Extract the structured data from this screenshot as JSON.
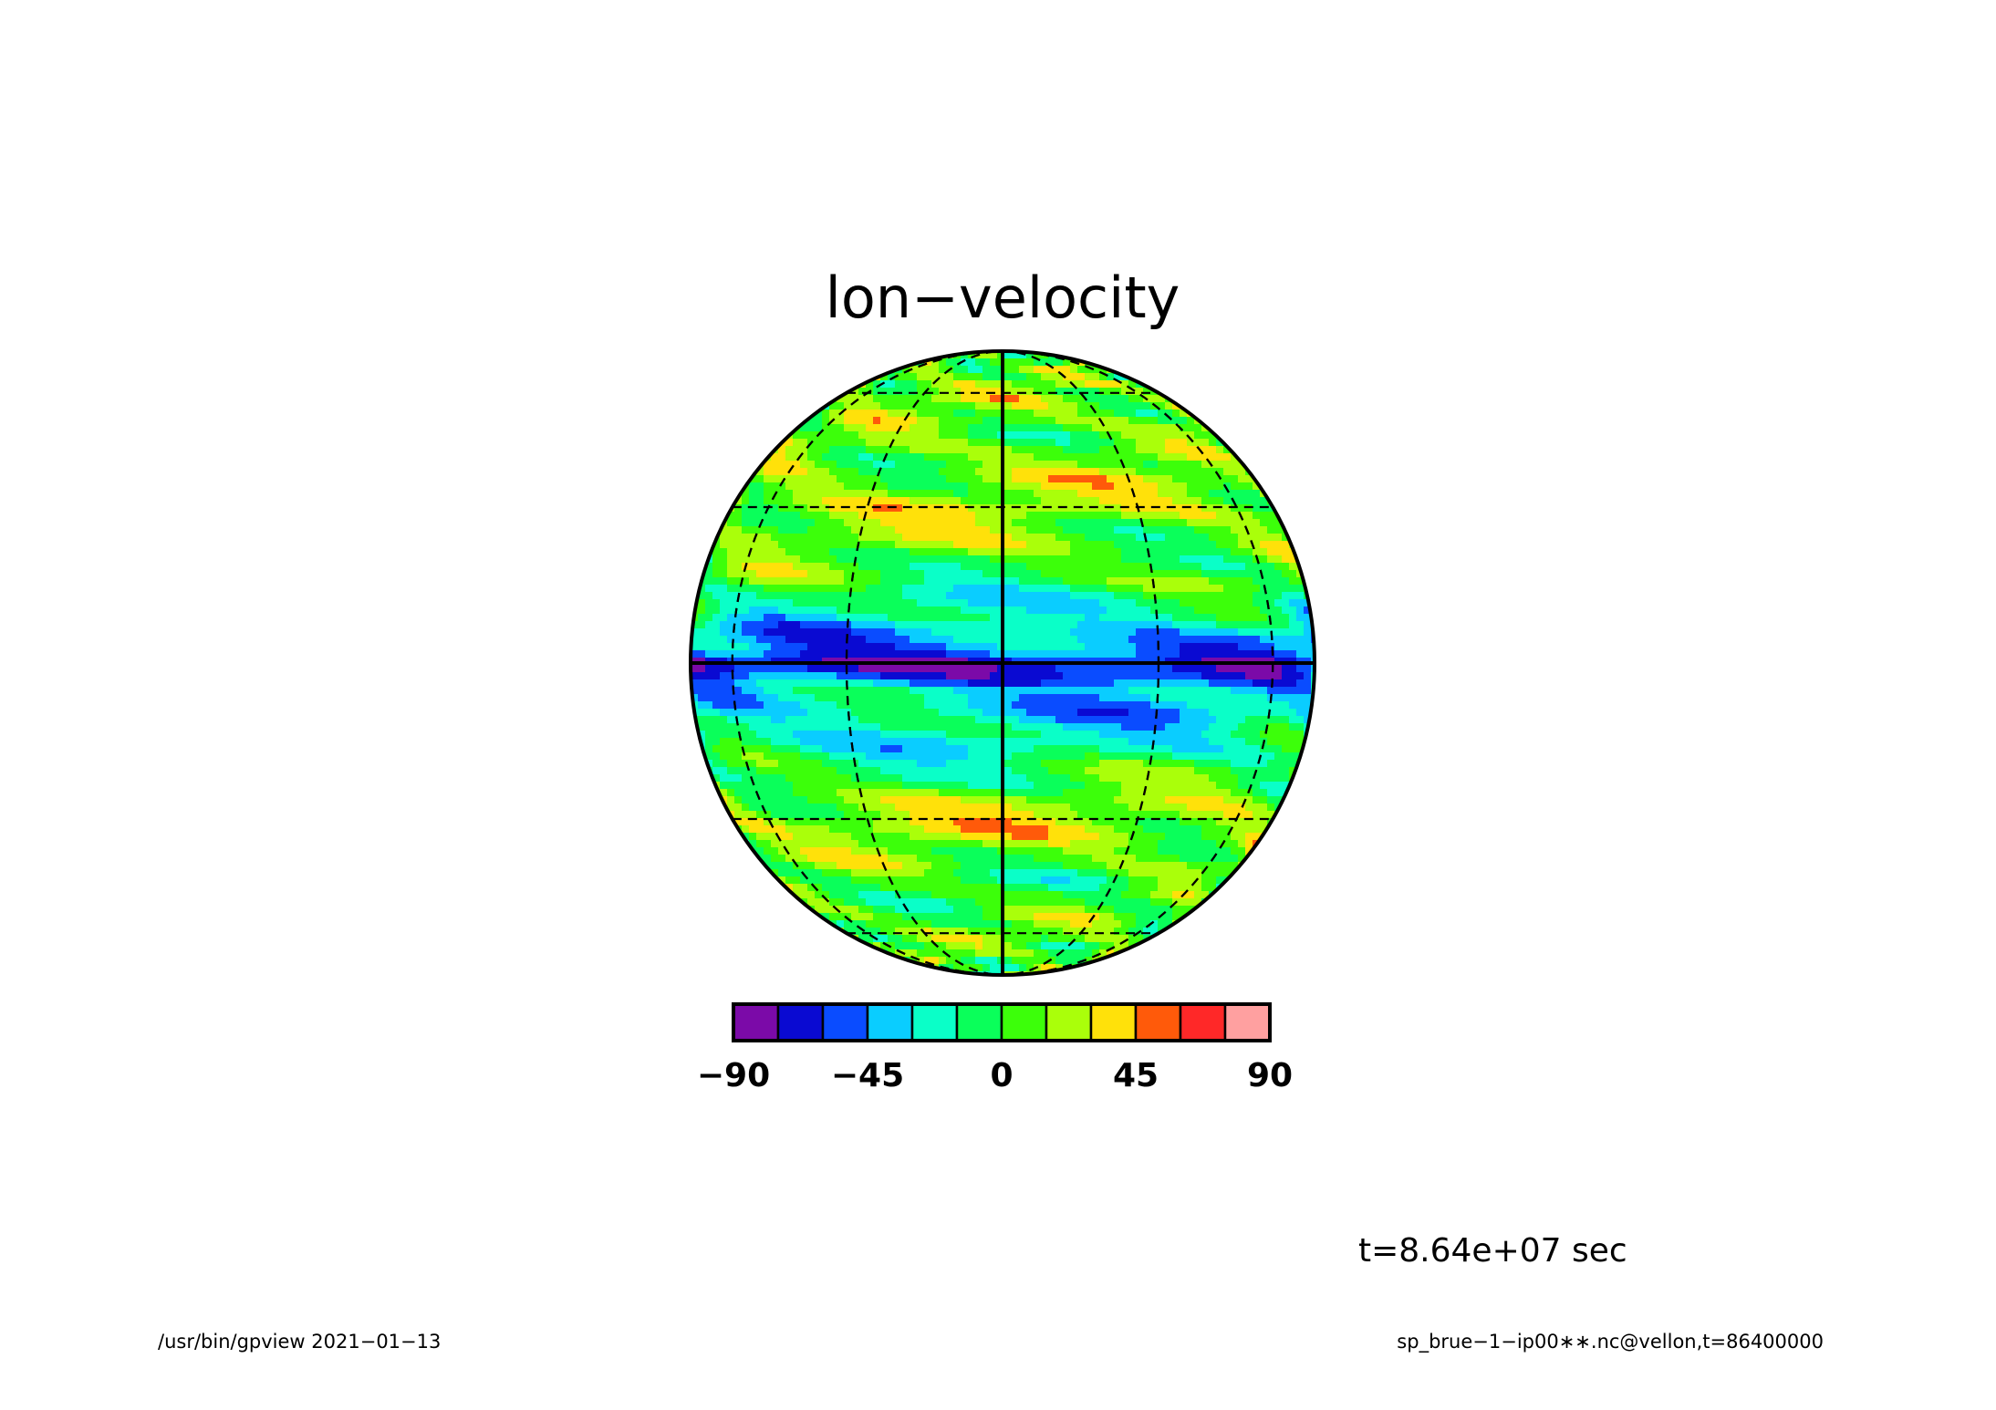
{
  "chart_data": {
    "type": "heatmap",
    "projection": "orthographic",
    "title": "lon−velocity",
    "time_annotation": "t=8.64e+07 sec",
    "footer_left": "/usr/bin/gpview   2021−01−13",
    "footer_right": "sp_brue−1−ip00∗∗.nc@vellon,t=86400000",
    "colorbar": {
      "levels": [
        -90,
        -75,
        -60,
        -45,
        -30,
        -15,
        0,
        15,
        30,
        45,
        60,
        75,
        90
      ],
      "colors": [
        "#7b0aa8",
        "#0a0ad2",
        "#0a4cff",
        "#0acdff",
        "#0affc8",
        "#0aff5a",
        "#3cff0a",
        "#aaff0a",
        "#ffe10a",
        "#ff5a0a",
        "#ff2828",
        "#ffa0a0"
      ],
      "tick_labels": [
        "−90",
        "−45",
        "0",
        "45",
        "90"
      ],
      "tick_values": [
        -90,
        -45,
        0,
        45,
        90
      ]
    },
    "value_range": [
      -90,
      90
    ],
    "field_description_bands": [
      {
        "lat": 80,
        "value": 5
      },
      {
        "lat": 60,
        "value": 15
      },
      {
        "lat": 45,
        "value": 10
      },
      {
        "lat": 30,
        "value": 20
      },
      {
        "lat": 15,
        "value": 0
      },
      {
        "lat": 3,
        "value": -45
      },
      {
        "lat": 0,
        "value": -70
      },
      {
        "lat": -5,
        "value": -35
      },
      {
        "lat": -15,
        "value": -20
      },
      {
        "lat": -30,
        "value": 25
      },
      {
        "lat": -45,
        "value": 0
      },
      {
        "lat": -60,
        "value": 10
      },
      {
        "lat": -80,
        "value": 5
      }
    ],
    "graticule": {
      "latitudes": [
        -90,
        -60,
        -30,
        0,
        30,
        60,
        90
      ],
      "longitudes": [
        -60,
        -30,
        0,
        30,
        60
      ]
    }
  }
}
